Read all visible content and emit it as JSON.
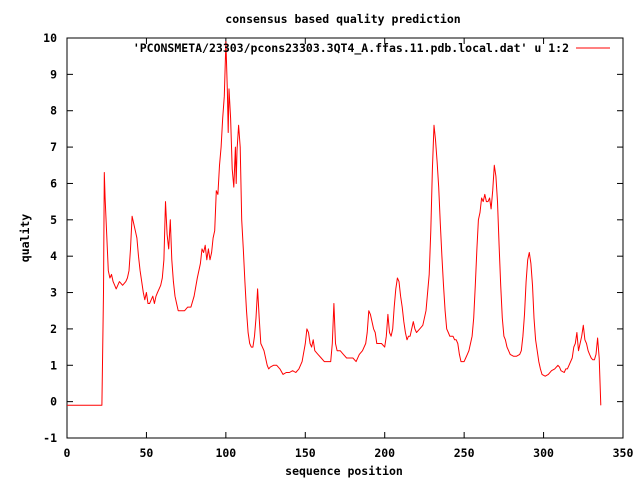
{
  "chart_data": {
    "type": "line",
    "title": "consensus based quality prediction",
    "xlabel": "sequence position",
    "ylabel": "quality",
    "xlim": [
      0,
      350
    ],
    "ylim": [
      -1,
      10
    ],
    "xticks": [
      0,
      50,
      100,
      150,
      200,
      250,
      300,
      350
    ],
    "yticks": [
      -1,
      0,
      1,
      2,
      3,
      4,
      5,
      6,
      7,
      8,
      9,
      10
    ],
    "grid": false,
    "legend": "top-right",
    "series": [
      {
        "name": "'PCONSMETA/23303/pcons23303.3QT4_A.ffas.11.pdb.local.dat' u 1:2",
        "color": "#ff0000",
        "points": [
          [
            0,
            -0.1
          ],
          [
            22,
            -0.1
          ],
          [
            23,
            3.0
          ],
          [
            23.5,
            6.3
          ],
          [
            24,
            5.6
          ],
          [
            25,
            4.6
          ],
          [
            26,
            3.6
          ],
          [
            27,
            3.4
          ],
          [
            28,
            3.5
          ],
          [
            29,
            3.3
          ],
          [
            30,
            3.2
          ],
          [
            31,
            3.1
          ],
          [
            33,
            3.3
          ],
          [
            35,
            3.2
          ],
          [
            37,
            3.3
          ],
          [
            38,
            3.4
          ],
          [
            39,
            3.6
          ],
          [
            40,
            4.2
          ],
          [
            41,
            5.1
          ],
          [
            42,
            4.9
          ],
          [
            43,
            4.7
          ],
          [
            44,
            4.5
          ],
          [
            45,
            4.0
          ],
          [
            46,
            3.6
          ],
          [
            47,
            3.3
          ],
          [
            48,
            3.0
          ],
          [
            49,
            2.8
          ],
          [
            50,
            3.0
          ],
          [
            51,
            2.7
          ],
          [
            52,
            2.7
          ],
          [
            53,
            2.8
          ],
          [
            54,
            2.9
          ],
          [
            55,
            2.7
          ],
          [
            56,
            2.9
          ],
          [
            57,
            3.0
          ],
          [
            58,
            3.1
          ],
          [
            59,
            3.2
          ],
          [
            60,
            3.4
          ],
          [
            61,
            3.9
          ],
          [
            62,
            5.5
          ],
          [
            63,
            4.6
          ],
          [
            64,
            4.2
          ],
          [
            65,
            5.0
          ],
          [
            66,
            3.9
          ],
          [
            67,
            3.3
          ],
          [
            68,
            2.9
          ],
          [
            69,
            2.7
          ],
          [
            70,
            2.5
          ],
          [
            72,
            2.5
          ],
          [
            74,
            2.5
          ],
          [
            76,
            2.6
          ],
          [
            78,
            2.6
          ],
          [
            80,
            2.9
          ],
          [
            82,
            3.4
          ],
          [
            84,
            3.8
          ],
          [
            85,
            4.2
          ],
          [
            86,
            4.1
          ],
          [
            87,
            4.3
          ],
          [
            88,
            3.9
          ],
          [
            89,
            4.2
          ],
          [
            90,
            3.9
          ],
          [
            91,
            4.1
          ],
          [
            92,
            4.5
          ],
          [
            93,
            4.7
          ],
          [
            94,
            5.8
          ],
          [
            95,
            5.7
          ],
          [
            96,
            6.5
          ],
          [
            97,
            7.0
          ],
          [
            98,
            7.8
          ],
          [
            99,
            8.4
          ],
          [
            100,
            9.9
          ],
          [
            101,
            8.5
          ],
          [
            101.5,
            7.4
          ],
          [
            102,
            8.6
          ],
          [
            103,
            7.8
          ],
          [
            104,
            6.4
          ],
          [
            105,
            5.9
          ],
          [
            106,
            7.0
          ],
          [
            106.5,
            6.0
          ],
          [
            107,
            6.9
          ],
          [
            108,
            7.6
          ],
          [
            109,
            7.0
          ],
          [
            110,
            5.0
          ],
          [
            111,
            4.2
          ],
          [
            112,
            3.3
          ],
          [
            113,
            2.5
          ],
          [
            114,
            1.9
          ],
          [
            115,
            1.6
          ],
          [
            116,
            1.5
          ],
          [
            117,
            1.5
          ],
          [
            118,
            1.8
          ],
          [
            119,
            2.3
          ],
          [
            120,
            3.1
          ],
          [
            121,
            2.3
          ],
          [
            122,
            1.6
          ],
          [
            123,
            1.5
          ],
          [
            124,
            1.4
          ],
          [
            125,
            1.2
          ],
          [
            126,
            1.0
          ],
          [
            127,
            0.9
          ],
          [
            128,
            0.95
          ],
          [
            130,
            1.0
          ],
          [
            132,
            1.0
          ],
          [
            134,
            0.9
          ],
          [
            136,
            0.75
          ],
          [
            138,
            0.8
          ],
          [
            140,
            0.8
          ],
          [
            142,
            0.85
          ],
          [
            144,
            0.8
          ],
          [
            146,
            0.9
          ],
          [
            148,
            1.1
          ],
          [
            150,
            1.6
          ],
          [
            151,
            2.0
          ],
          [
            152,
            1.9
          ],
          [
            153,
            1.6
          ],
          [
            154,
            1.5
          ],
          [
            155,
            1.7
          ],
          [
            156,
            1.4
          ],
          [
            158,
            1.3
          ],
          [
            160,
            1.2
          ],
          [
            162,
            1.1
          ],
          [
            164,
            1.1
          ],
          [
            166,
            1.1
          ],
          [
            167,
            1.6
          ],
          [
            168,
            2.7
          ],
          [
            169,
            1.6
          ],
          [
            170,
            1.4
          ],
          [
            172,
            1.4
          ],
          [
            174,
            1.3
          ],
          [
            176,
            1.2
          ],
          [
            178,
            1.2
          ],
          [
            180,
            1.2
          ],
          [
            182,
            1.1
          ],
          [
            184,
            1.3
          ],
          [
            186,
            1.4
          ],
          [
            188,
            1.6
          ],
          [
            189,
            1.9
          ],
          [
            190,
            2.5
          ],
          [
            191,
            2.4
          ],
          [
            192,
            2.2
          ],
          [
            193,
            2.0
          ],
          [
            194,
            1.9
          ],
          [
            195,
            1.6
          ],
          [
            196,
            1.6
          ],
          [
            198,
            1.6
          ],
          [
            200,
            1.5
          ],
          [
            201,
            1.8
          ],
          [
            202,
            2.4
          ],
          [
            203,
            1.9
          ],
          [
            204,
            1.8
          ],
          [
            205,
            2.0
          ],
          [
            206,
            2.6
          ],
          [
            207,
            3.1
          ],
          [
            208,
            3.4
          ],
          [
            209,
            3.3
          ],
          [
            210,
            2.9
          ],
          [
            211,
            2.6
          ],
          [
            212,
            2.2
          ],
          [
            213,
            1.9
          ],
          [
            214,
            1.7
          ],
          [
            215,
            1.8
          ],
          [
            216,
            1.8
          ],
          [
            217,
            2.0
          ],
          [
            218,
            2.2
          ],
          [
            219,
            2.0
          ],
          [
            220,
            1.9
          ],
          [
            222,
            2.0
          ],
          [
            224,
            2.1
          ],
          [
            226,
            2.5
          ],
          [
            228,
            3.5
          ],
          [
            229,
            4.7
          ],
          [
            230,
            6.4
          ],
          [
            231,
            7.6
          ],
          [
            232,
            7.2
          ],
          [
            233,
            6.6
          ],
          [
            234,
            5.9
          ],
          [
            235,
            4.9
          ],
          [
            236,
            4.0
          ],
          [
            237,
            3.2
          ],
          [
            238,
            2.5
          ],
          [
            239,
            2.0
          ],
          [
            240,
            1.9
          ],
          [
            241,
            1.8
          ],
          [
            242,
            1.8
          ],
          [
            243,
            1.8
          ],
          [
            244,
            1.7
          ],
          [
            245,
            1.7
          ],
          [
            246,
            1.6
          ],
          [
            247,
            1.3
          ],
          [
            248,
            1.1
          ],
          [
            249,
            1.1
          ],
          [
            250,
            1.1
          ],
          [
            251,
            1.2
          ],
          [
            252,
            1.3
          ],
          [
            253,
            1.4
          ],
          [
            254,
            1.6
          ],
          [
            255,
            1.8
          ],
          [
            256,
            2.3
          ],
          [
            257,
            3.2
          ],
          [
            258,
            4.2
          ],
          [
            259,
            5.0
          ],
          [
            260,
            5.2
          ],
          [
            261,
            5.6
          ],
          [
            262,
            5.5
          ],
          [
            263,
            5.7
          ],
          [
            264,
            5.5
          ],
          [
            265,
            5.5
          ],
          [
            266,
            5.6
          ],
          [
            267,
            5.3
          ],
          [
            268,
            5.8
          ],
          [
            269,
            6.5
          ],
          [
            270,
            6.2
          ],
          [
            271,
            5.5
          ],
          [
            272,
            4.3
          ],
          [
            273,
            3.2
          ],
          [
            274,
            2.3
          ],
          [
            275,
            1.8
          ],
          [
            276,
            1.7
          ],
          [
            277,
            1.5
          ],
          [
            278,
            1.4
          ],
          [
            279,
            1.3
          ],
          [
            281,
            1.25
          ],
          [
            283,
            1.25
          ],
          [
            285,
            1.3
          ],
          [
            286,
            1.4
          ],
          [
            287,
            1.8
          ],
          [
            288,
            2.4
          ],
          [
            289,
            3.3
          ],
          [
            290,
            3.9
          ],
          [
            291,
            4.1
          ],
          [
            292,
            3.8
          ],
          [
            293,
            3.2
          ],
          [
            294,
            2.3
          ],
          [
            295,
            1.7
          ],
          [
            296,
            1.4
          ],
          [
            297,
            1.1
          ],
          [
            298,
            0.9
          ],
          [
            299,
            0.75
          ],
          [
            301,
            0.7
          ],
          [
            303,
            0.75
          ],
          [
            305,
            0.85
          ],
          [
            307,
            0.9
          ],
          [
            309,
            1.0
          ],
          [
            310,
            0.95
          ],
          [
            311,
            0.85
          ],
          [
            313,
            0.8
          ],
          [
            314,
            0.9
          ],
          [
            315,
            0.9
          ],
          [
            316,
            1.0
          ],
          [
            318,
            1.2
          ],
          [
            319,
            1.5
          ],
          [
            320,
            1.6
          ],
          [
            321,
            1.9
          ],
          [
            322,
            1.4
          ],
          [
            323,
            1.6
          ],
          [
            324,
            1.8
          ],
          [
            325,
            2.1
          ],
          [
            326,
            1.7
          ],
          [
            327,
            1.6
          ],
          [
            328,
            1.4
          ],
          [
            329,
            1.3
          ],
          [
            330,
            1.2
          ],
          [
            331,
            1.15
          ],
          [
            332,
            1.15
          ],
          [
            333,
            1.3
          ],
          [
            334,
            1.75
          ],
          [
            335,
            1.2
          ],
          [
            336,
            -0.1
          ]
        ]
      }
    ]
  }
}
